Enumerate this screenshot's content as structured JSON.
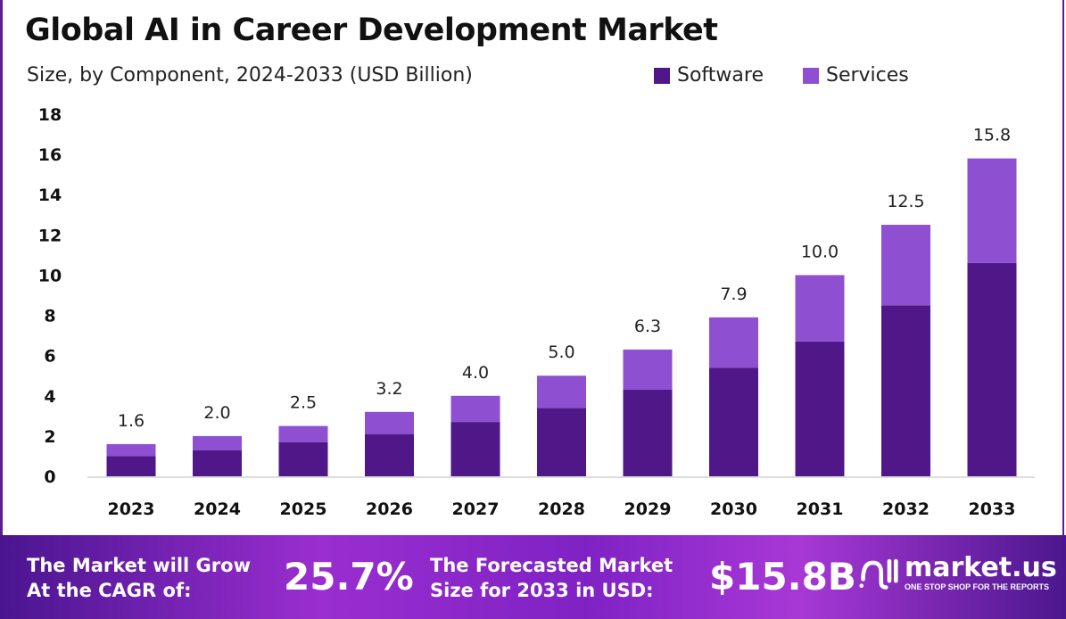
{
  "chart_data": {
    "type": "bar",
    "stacked": true,
    "title": "Global AI in Career Development Market",
    "subtitle": "Size, by Component, 2024-2033 (USD Billion)",
    "categories": [
      "2023",
      "2024",
      "2025",
      "2026",
      "2027",
      "2028",
      "2029",
      "2030",
      "2031",
      "2032",
      "2033"
    ],
    "series": [
      {
        "name": "Software",
        "color": "#4f1787",
        "values": [
          1.0,
          1.3,
          1.7,
          2.1,
          2.7,
          3.4,
          4.3,
          5.4,
          6.7,
          8.5,
          10.6
        ]
      },
      {
        "name": "Services",
        "color": "#8e4fd1",
        "values": [
          0.6,
          0.7,
          0.8,
          1.1,
          1.3,
          1.6,
          2.0,
          2.5,
          3.3,
          4.0,
          5.2
        ]
      }
    ],
    "totals": [
      "1.6",
      "2.0",
      "2.5",
      "3.2",
      "4.0",
      "5.0",
      "6.3",
      "7.9",
      "10.0",
      "12.5",
      "15.8"
    ],
    "yticks": [
      "0",
      "2",
      "4",
      "6",
      "8",
      "10",
      "12",
      "14",
      "16",
      "18"
    ],
    "ylim": [
      0,
      18
    ],
    "grid": false,
    "legend": "top-right"
  },
  "footer": {
    "cagr_label_1": "The Market will Grow",
    "cagr_label_2": "At the CAGR of:",
    "cagr_value": "25.7%",
    "forecast_label_1": "The Forecasted Market",
    "forecast_label_2": "Size for 2033 in USD:",
    "forecast_value": "$15.8B",
    "logo_text": "market.us",
    "logo_tagline": "ONE STOP SHOP FOR THE REPORTS"
  }
}
